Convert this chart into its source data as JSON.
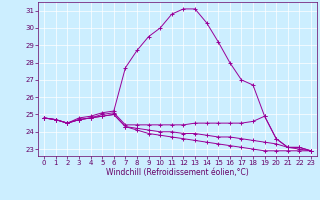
{
  "title": "",
  "xlabel": "Windchill (Refroidissement éolien,°C)",
  "bg_color": "#cceeff",
  "grid_color": "#ffffff",
  "line_color": "#990099",
  "x_ticks": [
    0,
    1,
    2,
    3,
    4,
    5,
    6,
    7,
    8,
    9,
    10,
    11,
    12,
    13,
    14,
    15,
    16,
    17,
    18,
    19,
    20,
    21,
    22,
    23
  ],
  "y_ticks": [
    23,
    24,
    25,
    26,
    27,
    28,
    29,
    30,
    31
  ],
  "ylim": [
    22.6,
    31.5
  ],
  "xlim": [
    -0.5,
    23.5
  ],
  "series": [
    [
      24.8,
      24.7,
      24.5,
      24.8,
      24.9,
      25.1,
      25.2,
      27.7,
      28.7,
      29.5,
      30.0,
      30.8,
      31.1,
      31.1,
      30.3,
      29.2,
      28.0,
      27.0,
      26.7,
      24.9,
      23.6,
      23.1,
      23.1,
      22.9
    ],
    [
      24.8,
      24.7,
      24.5,
      24.7,
      24.8,
      25.0,
      25.1,
      24.4,
      24.4,
      24.4,
      24.4,
      24.4,
      24.4,
      24.5,
      24.5,
      24.5,
      24.5,
      24.5,
      24.6,
      24.9,
      23.6,
      23.1,
      23.1,
      22.9
    ],
    [
      24.8,
      24.7,
      24.5,
      24.7,
      24.8,
      24.9,
      25.0,
      24.3,
      24.2,
      24.1,
      24.0,
      24.0,
      23.9,
      23.9,
      23.8,
      23.7,
      23.7,
      23.6,
      23.5,
      23.4,
      23.3,
      23.1,
      23.0,
      22.9
    ],
    [
      24.8,
      24.7,
      24.5,
      24.7,
      24.8,
      24.9,
      25.0,
      24.3,
      24.1,
      23.9,
      23.8,
      23.7,
      23.6,
      23.5,
      23.4,
      23.3,
      23.2,
      23.1,
      23.0,
      22.9,
      22.9,
      22.9,
      22.9,
      22.9
    ]
  ],
  "tick_fontsize": 5,
  "xlabel_fontsize": 5.5,
  "tick_color": "#660066",
  "spine_color": "#660066"
}
